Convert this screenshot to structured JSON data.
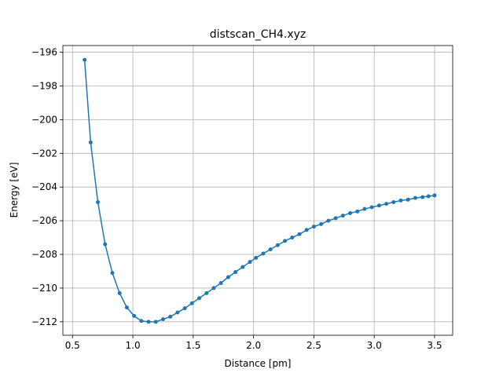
{
  "chart_data": {
    "type": "line",
    "title": "distscan_CH4.xyz",
    "xlabel": "Distance [pm]",
    "ylabel": "Energy [eV]",
    "xlim": [
      0.42,
      3.65
    ],
    "ylim": [
      -212.8,
      -195.6
    ],
    "xticks": [
      0.5,
      1.0,
      1.5,
      2.0,
      2.5,
      3.0,
      3.5
    ],
    "xtick_labels": [
      "0.5",
      "1.0",
      "1.5",
      "2.0",
      "2.5",
      "3.0",
      "3.5"
    ],
    "yticks": [
      -196,
      -198,
      -200,
      -202,
      -204,
      -206,
      -208,
      -210,
      -212
    ],
    "ytick_labels": [
      "−196",
      "−198",
      "−200",
      "−202",
      "−204",
      "−206",
      "−208",
      "−210",
      "−212"
    ],
    "grid": true,
    "series": [
      {
        "color": "#1f77b4",
        "marker": "circle",
        "x": [
          0.6,
          0.65,
          0.71,
          0.77,
          0.83,
          0.89,
          0.95,
          1.01,
          1.07,
          1.13,
          1.19,
          1.25,
          1.31,
          1.37,
          1.43,
          1.49,
          1.55,
          1.61,
          1.67,
          1.73,
          1.79,
          1.85,
          1.91,
          1.97,
          2.02,
          2.08,
          2.14,
          2.2,
          2.26,
          2.32,
          2.38,
          2.44,
          2.5,
          2.56,
          2.62,
          2.68,
          2.74,
          2.8,
          2.86,
          2.92,
          2.98,
          3.04,
          3.1,
          3.16,
          3.22,
          3.28,
          3.34,
          3.4,
          3.45,
          3.5
        ],
        "y": [
          -196.45,
          -201.35,
          -204.9,
          -207.4,
          -209.1,
          -210.3,
          -211.15,
          -211.65,
          -211.95,
          -212.0,
          -212.0,
          -211.85,
          -211.7,
          -211.45,
          -211.2,
          -210.9,
          -210.6,
          -210.3,
          -210.0,
          -209.7,
          -209.35,
          -209.05,
          -208.75,
          -208.45,
          -208.2,
          -207.95,
          -207.7,
          -207.45,
          -207.2,
          -207.0,
          -206.8,
          -206.55,
          -206.35,
          -206.2,
          -206.0,
          -205.85,
          -205.7,
          -205.55,
          -205.45,
          -205.3,
          -205.2,
          -205.1,
          -205.0,
          -204.9,
          -204.8,
          -204.75,
          -204.65,
          -204.6,
          -204.55,
          -204.5
        ]
      }
    ]
  }
}
